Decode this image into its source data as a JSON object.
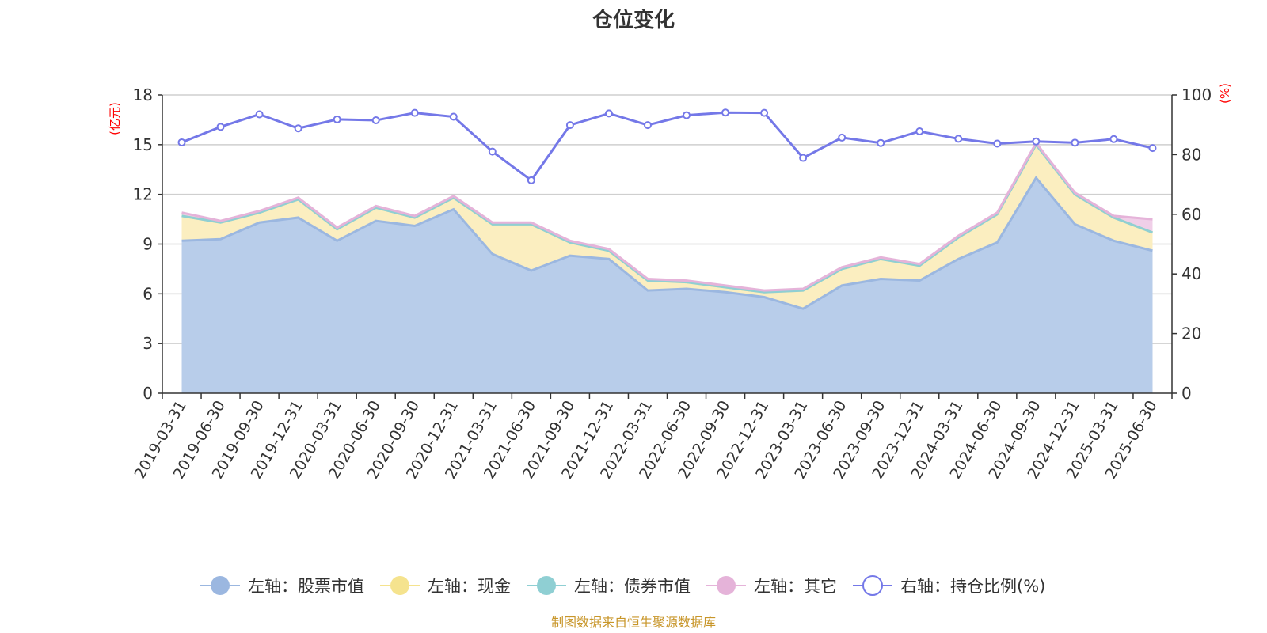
{
  "chart_data": {
    "type": "area",
    "title": "仓位变化",
    "left_unit": "(亿元)",
    "right_unit": "(%)",
    "source": "制图数据来自恒生聚源数据库",
    "left_axis": {
      "min": 0,
      "max": 18,
      "ticks": [
        0,
        3,
        6,
        9,
        12,
        15,
        18
      ]
    },
    "right_axis": {
      "min": 0,
      "max": 100,
      "ticks": [
        0,
        20,
        40,
        60,
        80,
        100
      ]
    },
    "categories": [
      "2019-03-31",
      "2019-06-30",
      "2019-09-30",
      "2019-12-31",
      "2020-03-31",
      "2020-06-30",
      "2020-09-30",
      "2020-12-31",
      "2021-03-31",
      "2021-06-30",
      "2021-09-30",
      "2021-12-31",
      "2022-03-31",
      "2022-06-30",
      "2022-09-30",
      "2022-12-31",
      "2023-03-31",
      "2023-06-30",
      "2023-09-30",
      "2023-12-31",
      "2024-03-31",
      "2024-06-30",
      "2024-09-30",
      "2024-12-31",
      "2025-03-31",
      "2025-06-30"
    ],
    "series": [
      {
        "name": "左轴：股票市值",
        "axis": "left",
        "kind": "stack-area",
        "color": "#9bb7e0",
        "fill": "#b8cdea",
        "values": [
          9.2,
          9.3,
          10.3,
          10.6,
          9.2,
          10.4,
          10.1,
          11.1,
          8.4,
          7.4,
          8.3,
          8.1,
          6.2,
          6.3,
          6.1,
          5.8,
          5.1,
          6.5,
          6.9,
          6.8,
          8.1,
          9.1,
          13.0,
          10.2,
          9.2,
          8.6
        ]
      },
      {
        "name": "左轴：现金",
        "axis": "left",
        "kind": "stack-area",
        "color": "#f5e38e",
        "fill": "#fbeec0",
        "values": [
          1.5,
          1.0,
          0.6,
          1.1,
          0.7,
          0.8,
          0.5,
          0.7,
          1.8,
          2.8,
          0.8,
          0.5,
          0.6,
          0.4,
          0.3,
          0.3,
          1.1,
          1.0,
          1.2,
          0.9,
          1.3,
          1.7,
          2.0,
          1.8,
          1.4,
          1.1
        ]
      },
      {
        "name": "左轴：债券市值",
        "axis": "left",
        "kind": "stack-area",
        "color": "#8fcfd3",
        "fill": "#a9dcdf",
        "values": [
          0,
          0,
          0,
          0,
          0,
          0,
          0,
          0,
          0,
          0,
          0,
          0,
          0,
          0,
          0,
          0,
          0,
          0,
          0,
          0,
          0,
          0,
          0,
          0,
          0,
          0
        ]
      },
      {
        "name": "左轴：其它",
        "axis": "left",
        "kind": "stack-area",
        "color": "#e5b3d9",
        "fill": "#f0cfe8",
        "values": [
          0.2,
          0.1,
          0.1,
          0.1,
          0.1,
          0.1,
          0.1,
          0.1,
          0.1,
          0.1,
          0.1,
          0.1,
          0.1,
          0.1,
          0.1,
          0.1,
          0.1,
          0.1,
          0.1,
          0.1,
          0.1,
          0.1,
          0.1,
          0.1,
          0.1,
          0.8
        ]
      },
      {
        "name": "右轴：持仓比例(%)",
        "axis": "right",
        "kind": "line",
        "color": "#7478e8",
        "values": [
          84.1,
          89.3,
          93.5,
          88.8,
          91.8,
          91.5,
          94.0,
          92.7,
          81.0,
          71.4,
          89.9,
          93.8,
          89.9,
          93.2,
          94.1,
          94.0,
          78.9,
          85.7,
          83.9,
          87.8,
          85.3,
          83.7,
          84.4,
          84.0,
          85.2,
          82.2
        ]
      }
    ],
    "legend_position": "bottom-center",
    "grid": true
  }
}
